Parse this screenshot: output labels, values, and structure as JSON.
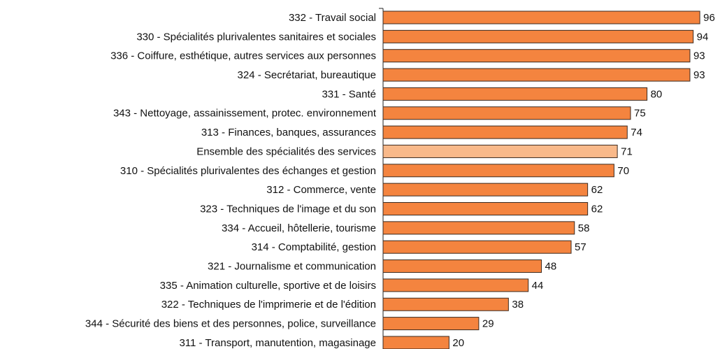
{
  "chart_data": {
    "type": "barh",
    "categories": [
      "332 - Travail social",
      "330 - Spécialités plurivalentes sanitaires et sociales",
      "336 - Coiffure, esthétique, autres services aux personnes",
      "324 - Secrétariat, bureautique",
      "331 - Santé",
      "343 - Nettoyage, assainissement, protec. environnement",
      "313 - Finances, banques, assurances",
      "Ensemble des spécialités des services",
      "310 - Spécialités plurivalentes des échanges et gestion",
      "312 - Commerce, vente",
      "323 - Techniques de l'image et du son",
      "334 - Accueil, hôtellerie, tourisme",
      "314 - Comptabilité, gestion",
      "321 - Journalisme et communication",
      "335 - Animation culturelle, sportive et de loisirs",
      "322 - Techniques de l'imprimerie et de l'édition",
      "344 - Sécurité des biens et des personnes, police, surveillance",
      "311 - Transport, manutention, magasinage"
    ],
    "values": [
      96,
      94,
      93,
      93,
      80,
      75,
      74,
      71,
      70,
      62,
      62,
      58,
      57,
      48,
      44,
      38,
      29,
      20
    ],
    "colors": [
      "#f4843f",
      "#f4843f",
      "#f4843f",
      "#f4843f",
      "#f4843f",
      "#f4843f",
      "#f4843f",
      "#f9b98a",
      "#f4843f",
      "#f4843f",
      "#f4843f",
      "#f4843f",
      "#f4843f",
      "#f4843f",
      "#f4843f",
      "#f4843f",
      "#f4843f",
      "#f4843f"
    ],
    "xlim": [
      0,
      100
    ]
  }
}
